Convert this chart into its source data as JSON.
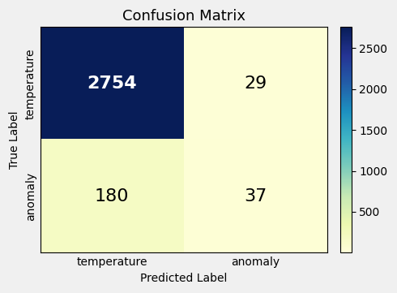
{
  "title": "Confusion Matrix",
  "matrix": [
    [
      2754,
      29
    ],
    [
      180,
      37
    ]
  ],
  "x_labels": [
    "temperature",
    "anomaly"
  ],
  "y_labels": [
    "temperature",
    "anomaly"
  ],
  "xlabel": "Predicted Label",
  "ylabel": "True Label",
  "colormap": "YlGnBu",
  "text_colors": [
    "white",
    "black",
    "black",
    "black"
  ],
  "colorbar_ticks": [
    500,
    1000,
    1500,
    2000,
    2500
  ],
  "vmin": 0,
  "vmax": 2754,
  "fontsize_values": 16,
  "fontsize_labels": 10,
  "fontsize_title": 13,
  "fig_facecolor": "#f0f0f0"
}
